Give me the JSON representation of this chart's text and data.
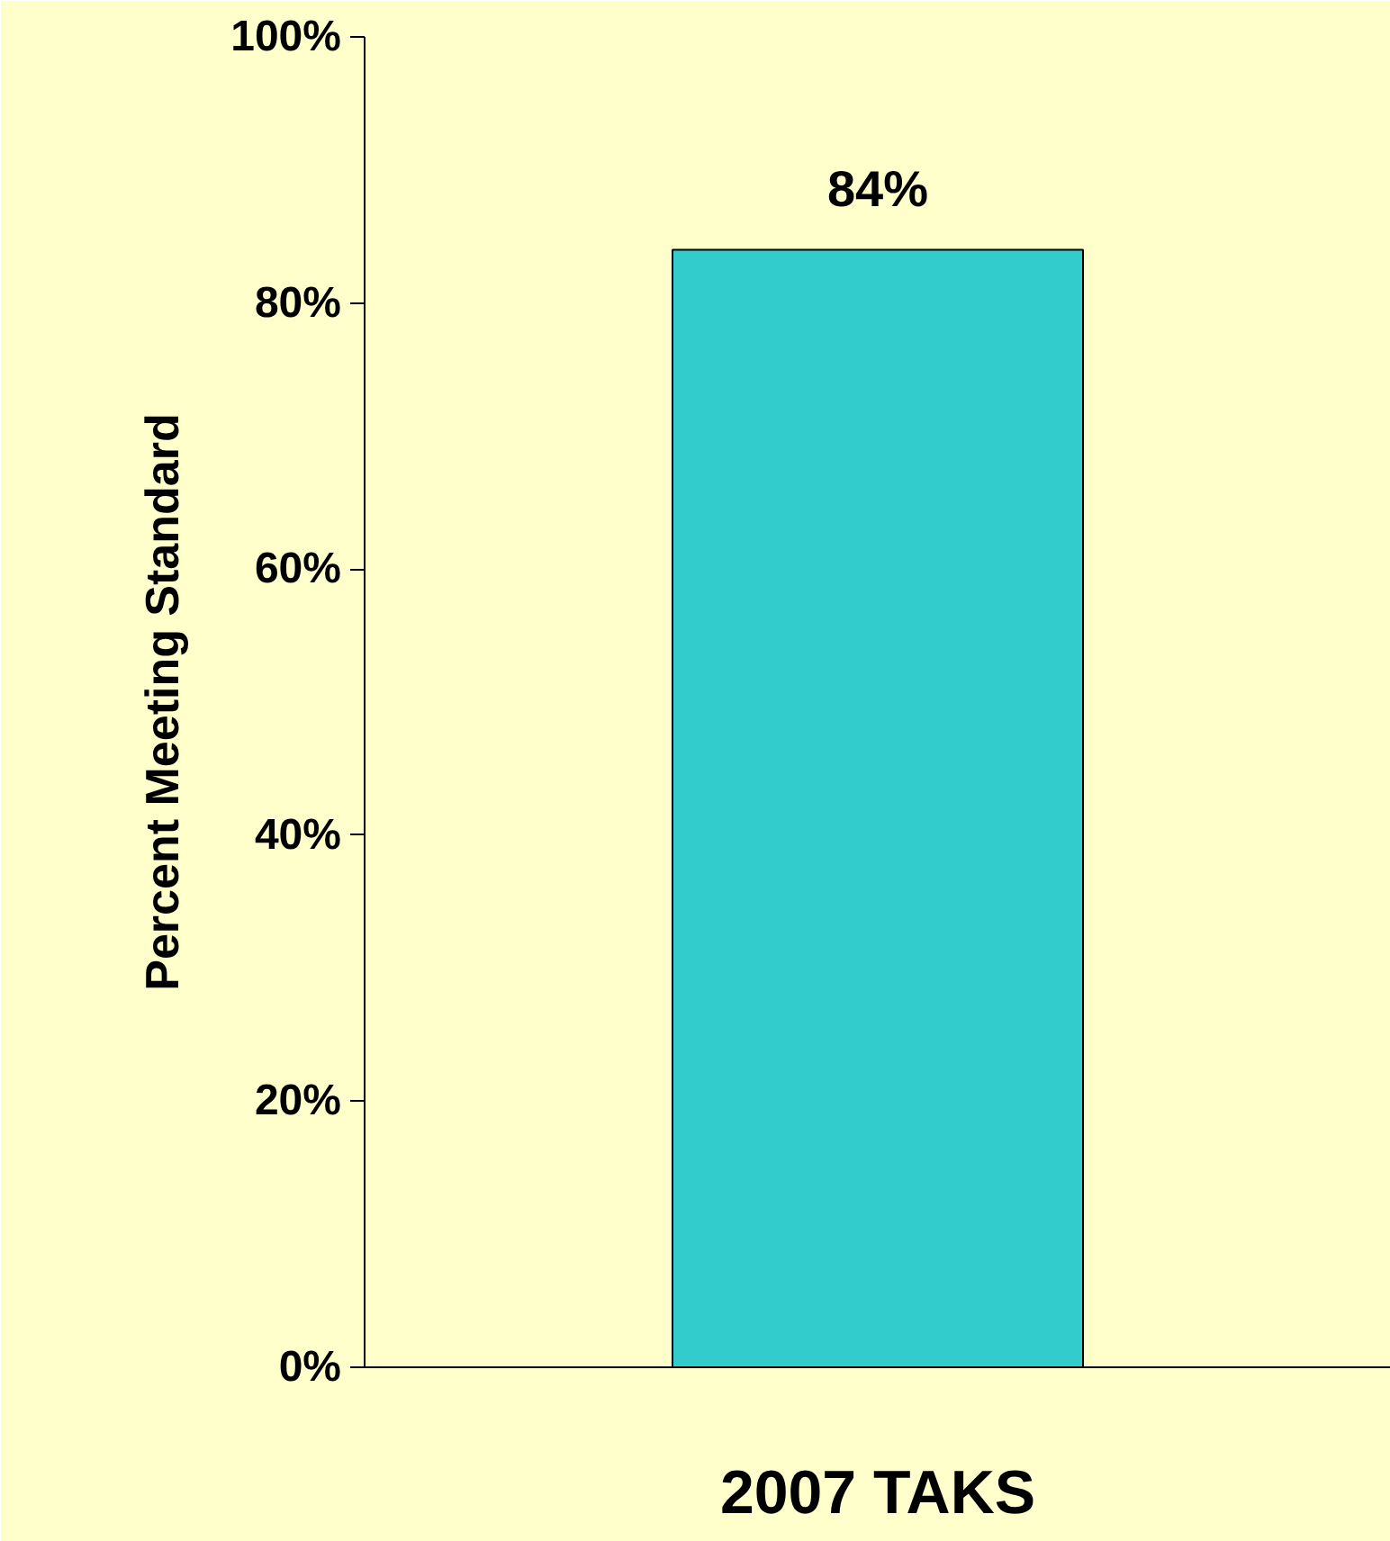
{
  "chart_data": {
    "type": "bar",
    "ylabel": "Percent Meeting Standard",
    "categories": [
      "2007 TAKS"
    ],
    "values": [
      84
    ],
    "color": "#33cccc",
    "value_labels": [
      "84%"
    ],
    "ylim": [
      0,
      100
    ],
    "yticks": [
      {
        "value": 0,
        "label": "0%"
      },
      {
        "value": 20,
        "label": "20%"
      },
      {
        "value": 40,
        "label": "40%"
      },
      {
        "value": 60,
        "label": "60%"
      },
      {
        "value": 80,
        "label": "80%"
      },
      {
        "value": 100,
        "label": "100%"
      }
    ],
    "grid": false
  }
}
